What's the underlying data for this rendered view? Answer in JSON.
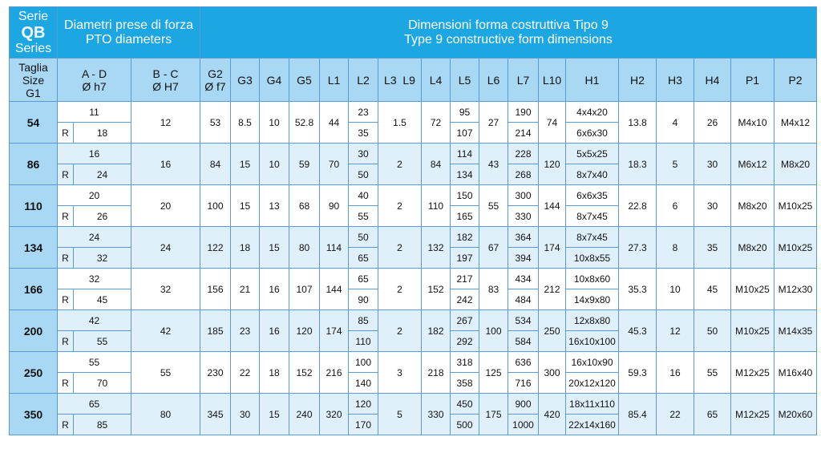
{
  "header": {
    "series_it": "Serie",
    "series_code": "QB",
    "series_en": "Series",
    "pto_it": "Diametri prese di forza",
    "pto_en": "PTO diameters",
    "dims_it": "Dimensioni forma costruttiva Tipo 9",
    "dims_en": "Type 9 constructive form dimensions"
  },
  "columns": {
    "size": [
      "Taglia",
      "Size",
      "G1"
    ],
    "ad": [
      "A - D",
      "Ø h7"
    ],
    "bc": [
      "B - C",
      "Ø H7"
    ],
    "g2": [
      "G2",
      "Ø f7"
    ],
    "g3": "G3",
    "g4": "G4",
    "g5": "G5",
    "l1": "L1",
    "l2": "L2",
    "l3l9": "L3  L9",
    "l4": "L4",
    "l5": "L5",
    "l6": "L6",
    "l7": "L7",
    "l10": "L10",
    "h1": "H1",
    "h2": "H2",
    "h3": "H3",
    "h4": "H4",
    "p1": "P1",
    "p2": "P2"
  },
  "r_label": "R",
  "rows": [
    {
      "size": "54",
      "ad": "11",
      "ad_r": "18",
      "bc": "12",
      "g2": "53",
      "g3": "8.5",
      "g4": "10",
      "g5": "52.8",
      "l1": "44",
      "l2a": "23",
      "l2b": "35",
      "l3l9": "1.5",
      "l4": "72",
      "l5a": "95",
      "l5b": "107",
      "l6": "27",
      "l7a": "190",
      "l7b": "214",
      "l10": "74",
      "h1a": "4x4x20",
      "h1b": "6x6x30",
      "h2": "13.8",
      "h3": "4",
      "h4": "26",
      "p1": "M4x10",
      "p2": "M4x12"
    },
    {
      "size": "86",
      "ad": "16",
      "ad_r": "24",
      "bc": "16",
      "g2": "84",
      "g3": "15",
      "g4": "10",
      "g5": "59",
      "l1": "70",
      "l2a": "30",
      "l2b": "50",
      "l3l9": "2",
      "l4": "84",
      "l5a": "114",
      "l5b": "134",
      "l6": "43",
      "l7a": "228",
      "l7b": "268",
      "l10": "120",
      "h1a": "5x5x25",
      "h1b": "8x7x40",
      "h2": "18.3",
      "h3": "5",
      "h4": "30",
      "p1": "M6x12",
      "p2": "M8x20"
    },
    {
      "size": "110",
      "ad": "20",
      "ad_r": "26",
      "bc": "20",
      "g2": "100",
      "g3": "15",
      "g4": "13",
      "g5": "68",
      "l1": "90",
      "l2a": "40",
      "l2b": "55",
      "l3l9": "2",
      "l4": "110",
      "l5a": "150",
      "l5b": "165",
      "l6": "55",
      "l7a": "300",
      "l7b": "330",
      "l10": "144",
      "h1a": "6x6x35",
      "h1b": "8x7x45",
      "h2": "22.8",
      "h3": "6",
      "h4": "30",
      "p1": "M8x20",
      "p2": "M10x25"
    },
    {
      "size": "134",
      "ad": "24",
      "ad_r": "32",
      "bc": "24",
      "g2": "122",
      "g3": "18",
      "g4": "15",
      "g5": "80",
      "l1": "114",
      "l2a": "50",
      "l2b": "65",
      "l3l9": "2",
      "l4": "132",
      "l5a": "182",
      "l5b": "197",
      "l6": "67",
      "l7a": "364",
      "l7b": "394",
      "l10": "174",
      "h1a": "8x7x45",
      "h1b": "10x8x55",
      "h2": "27.3",
      "h3": "8",
      "h4": "35",
      "p1": "M8x20",
      "p2": "M10x25"
    },
    {
      "size": "166",
      "ad": "32",
      "ad_r": "45",
      "bc": "32",
      "g2": "156",
      "g3": "21",
      "g4": "16",
      "g5": "107",
      "l1": "144",
      "l2a": "65",
      "l2b": "90",
      "l3l9": "2",
      "l4": "152",
      "l5a": "217",
      "l5b": "242",
      "l6": "83",
      "l7a": "434",
      "l7b": "484",
      "l10": "212",
      "h1a": "10x8x60",
      "h1b": "14x9x80",
      "h2": "35.3",
      "h3": "10",
      "h4": "45",
      "p1": "M10x25",
      "p2": "M12x30"
    },
    {
      "size": "200",
      "ad": "42",
      "ad_r": "55",
      "bc": "42",
      "g2": "185",
      "g3": "23",
      "g4": "16",
      "g5": "120",
      "l1": "174",
      "l2a": "85",
      "l2b": "110",
      "l3l9": "2",
      "l4": "182",
      "l5a": "267",
      "l5b": "292",
      "l6": "100",
      "l7a": "534",
      "l7b": "584",
      "l10": "250",
      "h1a": "12x8x80",
      "h1b": "16x10x100",
      "h2": "45.3",
      "h3": "12",
      "h4": "50",
      "p1": "M10x25",
      "p2": "M14x35"
    },
    {
      "size": "250",
      "ad": "55",
      "ad_r": "70",
      "bc": "55",
      "g2": "230",
      "g3": "22",
      "g4": "18",
      "g5": "152",
      "l1": "216",
      "l2a": "100",
      "l2b": "140",
      "l3l9": "3",
      "l4": "218",
      "l5a": "318",
      "l5b": "358",
      "l6": "125",
      "l7a": "636",
      "l7b": "716",
      "l10": "300",
      "h1a": "16x10x90",
      "h1b": "20x12x120",
      "h2": "59.3",
      "h3": "16",
      "h4": "55",
      "p1": "M12x25",
      "p2": "M16x40"
    },
    {
      "size": "350",
      "ad": "65",
      "ad_r": "85",
      "bc": "80",
      "g2": "345",
      "g3": "30",
      "g4": "15",
      "g5": "240",
      "l1": "320",
      "l2a": "120",
      "l2b": "170",
      "l3l9": "5",
      "l4": "330",
      "l5a": "450",
      "l5b": "500",
      "l6": "175",
      "l7a": "900",
      "l7b": "1000",
      "l10": "420",
      "h1a": "18x11x110",
      "h1b": "22x14x160",
      "h2": "85.4",
      "h3": "22",
      "h4": "65",
      "p1": "M12x25",
      "p2": "M20x60"
    }
  ]
}
